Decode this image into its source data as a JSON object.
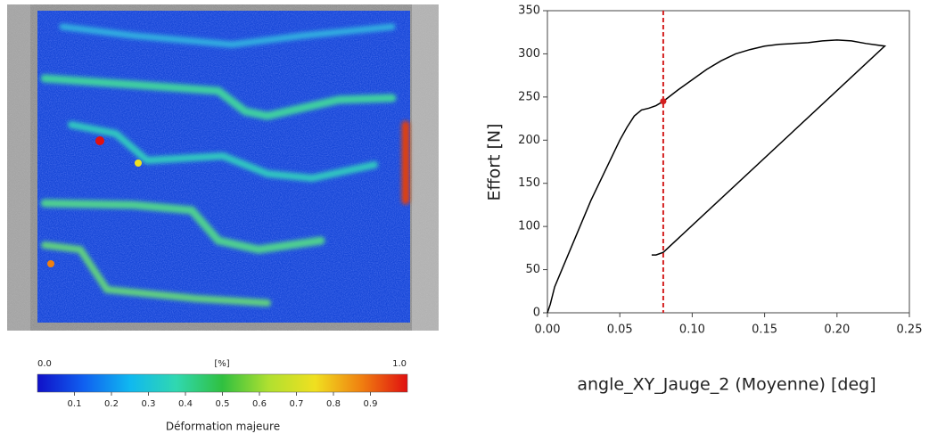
{
  "strain_map": {
    "title": "Déformation majeure",
    "unit": "[%]",
    "range_labels": [
      {
        "value": 0,
        "label": "0.0"
      },
      {
        "value": 1,
        "label": "1.0"
      }
    ],
    "ticks": [
      0.1,
      0.2,
      0.3,
      0.4,
      0.5,
      0.6,
      0.7,
      0.8,
      0.9
    ],
    "colors": [
      "#1010c8",
      "#1060f0",
      "#10b8f0",
      "#30d8b0",
      "#30c040",
      "#b0e030",
      "#f0e020",
      "#f08010",
      "#e01010"
    ]
  },
  "chart_data": {
    "type": "line",
    "xlabel": "angle_XY_Jauge_2 (Moyenne) [deg]",
    "ylabel": "Effort [N]",
    "x": [
      0,
      0.002,
      0.005,
      0.01,
      0.02,
      0.03,
      0.04,
      0.05,
      0.055,
      0.06,
      0.065,
      0.07,
      0.075,
      0.08,
      0.09,
      0.1,
      0.11,
      0.12,
      0.13,
      0.14,
      0.15,
      0.16,
      0.17,
      0.18,
      0.19,
      0.2,
      0.21,
      0.22,
      0.233,
      0.08,
      0.075,
      0.072
    ],
    "values": [
      0,
      10,
      30,
      50,
      90,
      130,
      165,
      200,
      215,
      228,
      235,
      237,
      240,
      245,
      258,
      270,
      282,
      292,
      300,
      305,
      309,
      311,
      312,
      313,
      315,
      316,
      315,
      312,
      309,
      70,
      67,
      67
    ],
    "color": "#000000",
    "marker": {
      "x": 0.08,
      "y": 245,
      "color": "#d42020"
    },
    "xlim": [
      0,
      0.25
    ],
    "ylim": [
      0,
      350
    ],
    "xticks": [
      {
        "value": 0,
        "label": "0.00"
      },
      0.05,
      {
        "value": 0.1,
        "label": "0.10"
      },
      0.15,
      {
        "value": 0.2,
        "label": "0.20"
      },
      0.25
    ],
    "yticks": [
      0,
      50,
      100,
      150,
      200,
      250,
      300,
      350
    ]
  }
}
